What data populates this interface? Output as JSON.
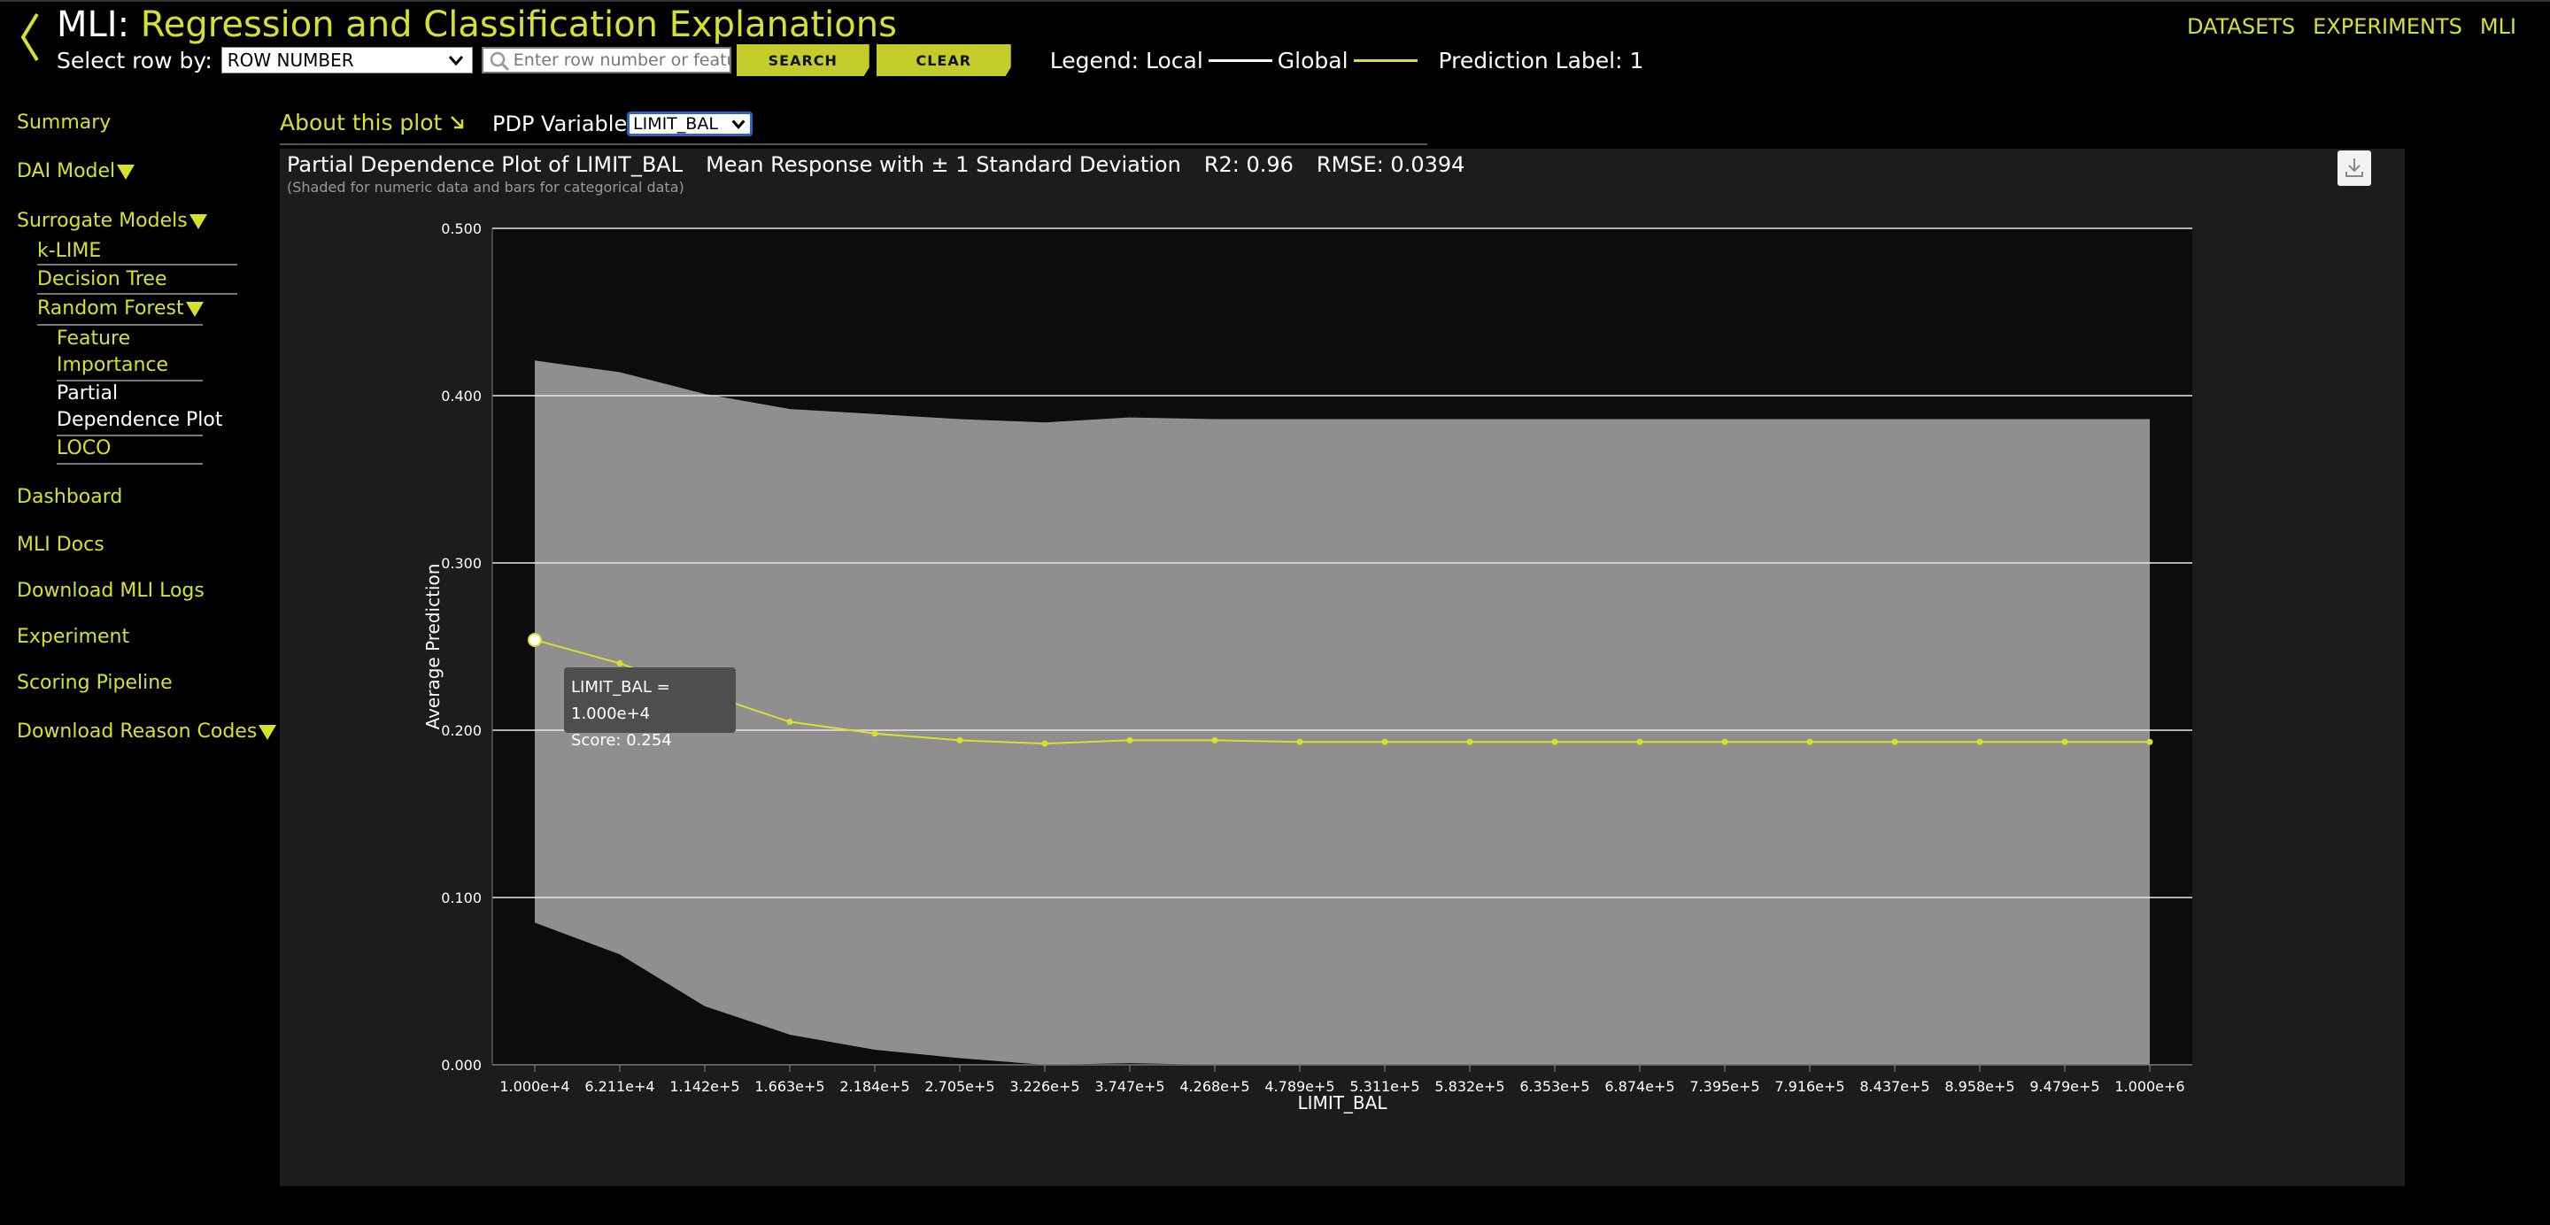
{
  "header": {
    "title_prefix": "MLI: ",
    "title_main": "Regression and Classification Explanations",
    "select_row_label": "Select row by:",
    "select_row_value": "ROW NUMBER",
    "search_placeholder": "Enter row number or featur",
    "search_button": "SEARCH",
    "clear_button": "CLEAR",
    "legend_label": "Legend: Local",
    "legend_global": "Global",
    "prediction_label": "Prediction Label:",
    "prediction_value": "1"
  },
  "topnav": {
    "datasets": "DATASETS",
    "experiments": "EXPERIMENTS",
    "mli": "MLI"
  },
  "sidebar": {
    "summary": "Summary",
    "dai_model": "DAI Model",
    "surrogate_models": "Surrogate Models",
    "klime": "k-LIME",
    "decision_tree": "Decision Tree",
    "random_forest": "Random Forest",
    "feature_importance_1": "Feature",
    "feature_importance_2": "Importance",
    "pdp_1": "Partial",
    "pdp_2": "Dependence Plot",
    "loco": "LOCO",
    "dashboard": "Dashboard",
    "mli_docs": "MLI Docs",
    "download_logs": "Download MLI Logs",
    "experiment": "Experiment",
    "scoring_pipeline": "Scoring Pipeline",
    "download_reason_codes": "Download Reason Codes"
  },
  "subheader": {
    "about": "About this plot",
    "pdp_variable_label": "PDP Variable:",
    "pdp_variable_value": "LIMIT_BAL"
  },
  "panel": {
    "title": "Partial Dependence Plot of LIMIT_BAL",
    "mean_response": "Mean Response with ± 1 Standard Deviation",
    "r2": "R2: 0.96",
    "rmse": "RMSE: 0.0394",
    "subtitle": "(Shaded for numeric data and bars for categorical data)"
  },
  "tooltip": {
    "line1": "LIMIT_BAL = 1.000e+4",
    "line2": "Score: 0.254"
  },
  "colors": {
    "accent": "#d6e12d",
    "band": "#8f8f8f",
    "line": "#d6e12d",
    "panel": "#1c1c1c"
  },
  "chart_data": {
    "type": "area",
    "title": "Partial Dependence Plot of LIMIT_BAL",
    "xlabel": "LIMIT_BAL",
    "ylabel": "Average Prediction",
    "ylim": [
      0,
      0.5
    ],
    "yticks": [
      "0.000",
      "0.100",
      "0.200",
      "0.300",
      "0.400",
      "0.500"
    ],
    "categories": [
      "1.000e+4",
      "6.211e+4",
      "1.142e+5",
      "1.663e+5",
      "2.184e+5",
      "2.705e+5",
      "3.226e+5",
      "3.747e+5",
      "4.268e+5",
      "4.789e+5",
      "5.311e+5",
      "5.832e+5",
      "6.353e+5",
      "6.874e+5",
      "7.395e+5",
      "7.916e+5",
      "8.437e+5",
      "8.958e+5",
      "9.479e+5",
      "1.000e+6"
    ],
    "series": [
      {
        "name": "Mean",
        "values": [
          0.254,
          0.24,
          0.222,
          0.205,
          0.198,
          0.194,
          0.192,
          0.194,
          0.194,
          0.193,
          0.193,
          0.193,
          0.193,
          0.193,
          0.193,
          0.193,
          0.193,
          0.193,
          0.193,
          0.193
        ]
      },
      {
        "name": "Upper",
        "values": [
          0.421,
          0.414,
          0.401,
          0.392,
          0.389,
          0.386,
          0.384,
          0.387,
          0.386,
          0.386,
          0.386,
          0.386,
          0.386,
          0.386,
          0.386,
          0.386,
          0.386,
          0.386,
          0.386,
          0.386
        ]
      },
      {
        "name": "Lower",
        "values": [
          0.085,
          0.066,
          0.035,
          0.018,
          0.009,
          0.004,
          0.0,
          0.001,
          0.0,
          0.0,
          0.0,
          0.0,
          0.0,
          0.0,
          0.0,
          0.0,
          0.0,
          0.0,
          0.0,
          0.0
        ]
      }
    ],
    "highlight_index": 0
  }
}
